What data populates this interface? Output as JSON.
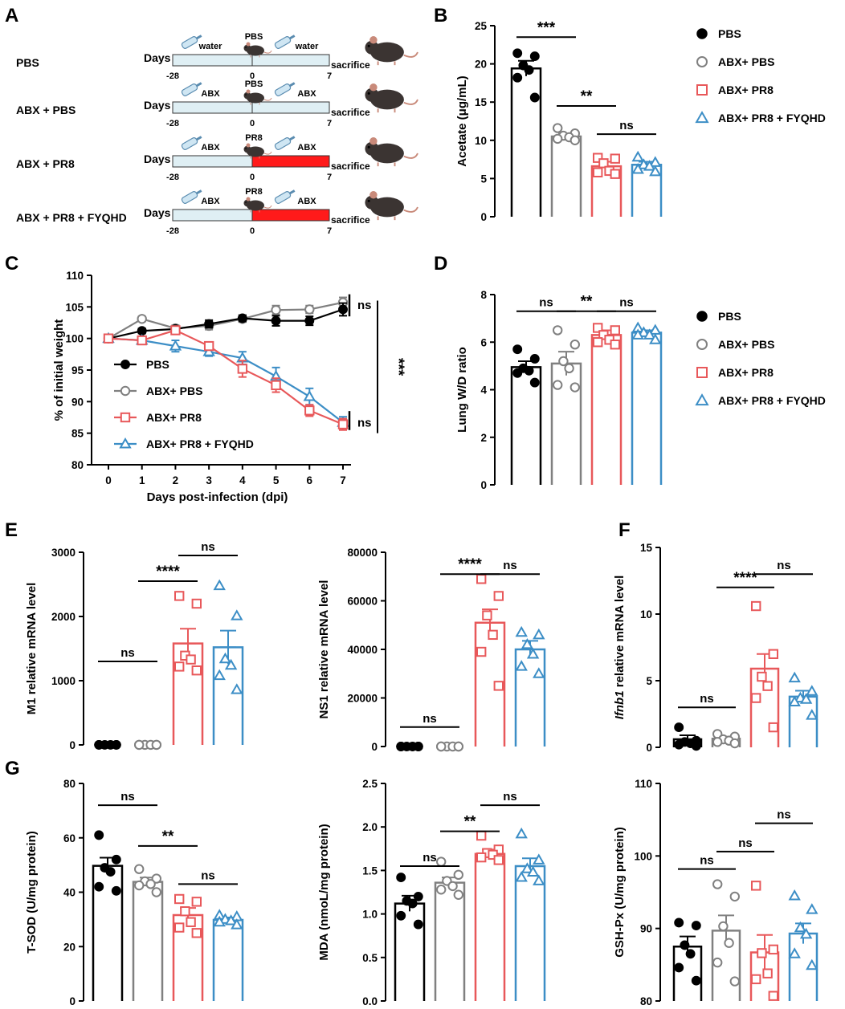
{
  "colors": {
    "pbs": "#000000",
    "abx_pbs": "#808080",
    "abx_pr8": "#e8585a",
    "abx_pr8_fyqhd": "#3c8ec6",
    "red_bar": "#ff1a1a",
    "timeline_fill": "#dfeff4"
  },
  "panel_labels": [
    "A",
    "B",
    "C",
    "D",
    "E",
    "F",
    "G"
  ],
  "legend": [
    "PBS",
    "ABX+ PBS",
    "ABX+ PR8",
    "ABX+ PR8 + FYQHD"
  ],
  "panelA": {
    "rows": [
      {
        "label": "PBS",
        "pre": "water",
        "mid": "PBS",
        "post": "water",
        "infected": false
      },
      {
        "label": "ABX + PBS",
        "pre": "ABX",
        "mid": "PBS",
        "post": "ABX",
        "infected": false
      },
      {
        "label": "ABX + PR8",
        "pre": "ABX",
        "mid": "PR8",
        "post": "ABX",
        "infected": true
      },
      {
        "label": "ABX + PR8 + FYQHD",
        "pre": "ABX",
        "mid": "PR8",
        "post": "ABX",
        "infected": true
      }
    ],
    "days_label": "Days",
    "end_label": "sacrifice",
    "ticks": [
      "-28",
      "0",
      "7"
    ]
  },
  "chart_data": [
    {
      "id": "B",
      "type": "bar",
      "title": "",
      "ylabel": "Acetate (μg/mL)",
      "ylim": [
        0,
        25
      ],
      "yticks": [
        0,
        5,
        10,
        15,
        20,
        25
      ],
      "categories": [
        "PBS",
        "ABX+ PBS",
        "ABX+ PR8",
        "ABX+ PR8 + FYQHD"
      ],
      "values": [
        19.4,
        10.5,
        6.6,
        6.8
      ],
      "sem": [
        1.0,
        0.4,
        0.6,
        0.4
      ],
      "points": [
        [
          21.4,
          21.0,
          19.8,
          19.2,
          18.2,
          15.6
        ],
        [
          11.6,
          10.9,
          10.6,
          10.4,
          10.2,
          10.0
        ],
        [
          7.7,
          7.6,
          7.0,
          6.0,
          5.8,
          5.6
        ],
        [
          7.8,
          7.1,
          6.8,
          6.6,
          6.2,
          5.9
        ]
      ],
      "sig": [
        {
          "a": 0,
          "b": 1,
          "text": "***",
          "y": 23.5
        },
        {
          "a": 1,
          "b": 2,
          "text": "**",
          "y": 14.5
        },
        {
          "a": 2,
          "b": 3,
          "text": "ns",
          "y": 10.8
        }
      ]
    },
    {
      "id": "C",
      "type": "line",
      "xlabel": "Days post-infection (dpi)",
      "ylabel": "% of initial weight",
      "ylim": [
        80,
        110
      ],
      "x": [
        0,
        1,
        2,
        3,
        4,
        5,
        6,
        7
      ],
      "xticks": [
        0,
        1,
        2,
        3,
        4,
        5,
        6,
        7
      ],
      "yticks": [
        80,
        85,
        90,
        95,
        100,
        105,
        110
      ],
      "series": [
        {
          "name": "PBS",
          "values": [
            100,
            101.2,
            101.5,
            102.3,
            103.2,
            102.8,
            102.8,
            104.6
          ],
          "err": [
            0.3,
            0.4,
            0.4,
            0.6,
            0.5,
            0.8,
            0.7,
            1.0
          ]
        },
        {
          "name": "ABX+ PBS",
          "values": [
            100,
            103.1,
            101.6,
            102.0,
            103.1,
            104.5,
            104.6,
            105.7
          ],
          "err": [
            0.3,
            0.4,
            0.5,
            0.6,
            0.5,
            0.7,
            0.6,
            0.8
          ]
        },
        {
          "name": "ABX+ PR8",
          "values": [
            100,
            99.7,
            101.3,
            98.8,
            95.2,
            92.6,
            88.6,
            86.4
          ],
          "err": [
            0.3,
            0.4,
            0.5,
            0.6,
            1.3,
            1.1,
            0.9,
            0.9
          ]
        },
        {
          "name": "ABX+ PR8 + FYQHD",
          "values": [
            100,
            99.7,
            98.8,
            97.9,
            96.9,
            94.0,
            90.8,
            86.7
          ],
          "err": [
            0.3,
            0.5,
            0.9,
            0.7,
            1.0,
            1.4,
            1.3,
            0.9
          ]
        }
      ],
      "sig": [
        {
          "text": "ns"
        },
        {
          "text": "***"
        },
        {
          "text": "ns"
        }
      ]
    },
    {
      "id": "D",
      "type": "bar",
      "ylabel": "Lung W/D ratio",
      "ylim": [
        0,
        8
      ],
      "yticks": [
        0,
        2,
        4,
        6,
        8
      ],
      "categories": [
        "PBS",
        "ABX+ PBS",
        "ABX+ PR8",
        "ABX+ PR8 + FYQHD"
      ],
      "values": [
        4.95,
        5.1,
        6.3,
        6.4
      ],
      "sem": [
        0.25,
        0.5,
        0.2,
        0.1
      ],
      "points": [
        [
          5.7,
          5.3,
          4.9,
          4.8,
          4.7,
          4.3
        ],
        [
          6.5,
          5.9,
          5.2,
          4.9,
          4.2,
          4.1
        ],
        [
          6.6,
          6.5,
          6.3,
          6.1,
          6.0,
          5.9
        ],
        [
          6.6,
          6.5,
          6.4,
          6.3,
          6.3,
          6.1
        ]
      ],
      "sig": [
        {
          "a": 0,
          "b": 1,
          "text": "ns",
          "y": 7.3
        },
        {
          "a": 1,
          "b": 2,
          "text": "**",
          "y": 7.3
        },
        {
          "a": 2,
          "b": 3,
          "text": "ns",
          "y": 7.3
        }
      ]
    },
    {
      "id": "E1",
      "type": "bar",
      "ylabel": "M1 relative mRNA level",
      "ylim": [
        0,
        3000
      ],
      "yticks": [
        0,
        1000,
        2000,
        3000
      ],
      "categories": [
        "PBS",
        "ABX+ PBS",
        "ABX+ PR8",
        "ABX+ PR8 + FYQHD"
      ],
      "values": [
        1,
        1,
        1580,
        1520
      ],
      "sem": [
        0,
        0,
        230,
        260
      ],
      "points": [
        [
          1,
          1,
          1,
          1,
          1,
          1
        ],
        [
          1,
          1,
          1,
          1,
          1,
          1
        ],
        [
          2320,
          2200,
          1390,
          1330,
          1220,
          1160
        ],
        [
          2480,
          2010,
          1340,
          1240,
          1080,
          860
        ]
      ],
      "sig": [
        {
          "a": 0,
          "b": 1,
          "text": "ns",
          "y": 1300
        },
        {
          "a": 1,
          "b": 2,
          "text": "****",
          "y": 2550
        },
        {
          "a": 2,
          "b": 3,
          "text": "ns",
          "y": 2950
        }
      ]
    },
    {
      "id": "E2",
      "type": "bar",
      "ylabel": "NS1 relative mRNA level",
      "ylim": [
        0,
        80000
      ],
      "yticks": [
        0,
        20000,
        40000,
        60000,
        80000
      ],
      "categories": [
        "PBS",
        "ABX+ PBS",
        "ABX+ PR8",
        "ABX+ PR8 + FYQHD"
      ],
      "values": [
        1,
        1,
        51000,
        40000
      ],
      "sem": [
        0,
        0,
        5500,
        3500
      ],
      "points": [
        [
          1,
          1,
          1,
          1,
          1,
          1
        ],
        [
          1,
          1,
          1,
          1,
          1,
          1
        ],
        [
          69000,
          62000,
          54000,
          46000,
          39000,
          25000
        ],
        [
          47000,
          46000,
          42000,
          38000,
          33000,
          30000
        ]
      ],
      "sig": [
        {
          "a": 0,
          "b": 1,
          "text": "ns",
          "y": 8000
        },
        {
          "a": 1,
          "b": 2,
          "text": "****",
          "y": 71000
        },
        {
          "a": 2,
          "b": 3,
          "text": "ns",
          "y": 71000
        }
      ]
    },
    {
      "id": "F",
      "type": "bar",
      "ylabel": "Ifnb1 relative mRNA level",
      "ylim": [
        0,
        15
      ],
      "yticks": [
        0,
        5,
        10,
        15
      ],
      "categories": [
        "PBS",
        "ABX+ PBS",
        "ABX+ PR8",
        "ABX+ PR8 + FYQHD"
      ],
      "values": [
        0.6,
        0.65,
        5.9,
        3.8
      ],
      "sem": [
        0.3,
        0.15,
        1.1,
        0.45
      ],
      "points": [
        [
          1.5,
          0.5,
          0.4,
          0.3,
          0.2,
          0.1
        ],
        [
          1.0,
          0.8,
          0.6,
          0.5,
          0.4,
          0.3
        ],
        [
          10.6,
          7.0,
          5.3,
          4.6,
          3.7,
          1.5
        ],
        [
          5.2,
          4.2,
          3.7,
          3.6,
          3.4,
          2.4
        ]
      ],
      "sig": [
        {
          "a": 0,
          "b": 1,
          "text": "ns",
          "y": 3.0
        },
        {
          "a": 1,
          "b": 2,
          "text": "****",
          "y": 12.0
        },
        {
          "a": 2,
          "b": 3,
          "text": "ns",
          "y": 13.0
        }
      ]
    },
    {
      "id": "G1",
      "type": "bar",
      "ylabel": "T-SOD (U/mg protein)",
      "ylim": [
        0,
        80
      ],
      "yticks": [
        0,
        20,
        40,
        60,
        80
      ],
      "categories": [
        "PBS",
        "ABX+ PBS",
        "ABX+ PR8",
        "ABX+ PR8 + FYQHD"
      ],
      "values": [
        49.7,
        43.8,
        31.6,
        29.8
      ],
      "sem": [
        3.0,
        1.6,
        2.6,
        0.9
      ],
      "points": [
        [
          61,
          52,
          49,
          47.5,
          42,
          40.5
        ],
        [
          48.5,
          45,
          44,
          43,
          42.5,
          40
        ],
        [
          37.5,
          36.5,
          33,
          29,
          27,
          25
        ],
        [
          31.5,
          31,
          30,
          29.5,
          29,
          28
        ]
      ],
      "sig": [
        {
          "a": 0,
          "b": 1,
          "text": "ns",
          "y": 72
        },
        {
          "a": 1,
          "b": 2,
          "text": "**",
          "y": 57
        },
        {
          "a": 2,
          "b": 3,
          "text": "ns",
          "y": 43
        }
      ]
    },
    {
      "id": "G2",
      "type": "bar",
      "ylabel": "MDA (nmoL/mg protein)",
      "ylim": [
        0,
        2.5
      ],
      "yticks": [
        0.0,
        0.5,
        1.0,
        1.5,
        2.0
      ],
      "ytick_labels": [
        "0.0",
        "0.5",
        "1.0",
        "1.5",
        "2.0",
        "2.5"
      ],
      "categories": [
        "PBS",
        "ABX+ PBS",
        "ABX+ PR8",
        "ABX+ PR8 + FYQHD"
      ],
      "values": [
        1.12,
        1.36,
        1.69,
        1.55
      ],
      "sem": [
        0.09,
        0.06,
        0.05,
        0.09
      ],
      "points": [
        [
          1.42,
          1.2,
          1.15,
          1.12,
          0.98,
          0.88
        ],
        [
          1.6,
          1.45,
          1.38,
          1.32,
          1.28,
          1.22
        ],
        [
          1.9,
          1.74,
          1.7,
          1.68,
          1.65,
          1.62
        ],
        [
          1.92,
          1.62,
          1.52,
          1.48,
          1.42,
          1.38
        ]
      ],
      "sig": [
        {
          "a": 0,
          "b": 1,
          "text": "ns",
          "y": 1.55
        },
        {
          "a": 1,
          "b": 2,
          "text": "**",
          "y": 1.95
        },
        {
          "a": 2,
          "b": 3,
          "text": "ns",
          "y": 2.25
        }
      ]
    },
    {
      "id": "G3",
      "type": "bar",
      "ylabel": "GSH-Px (U/mg protein)",
      "ylim": [
        80,
        110
      ],
      "yticks": [
        80,
        90,
        100,
        110
      ],
      "categories": [
        "PBS",
        "ABX+ PBS",
        "ABX+ PR8",
        "ABX+ PR8 + FYQHD"
      ],
      "values": [
        87.5,
        89.7,
        86.7,
        89.3
      ],
      "sem": [
        1.4,
        2.1,
        2.4,
        1.4
      ],
      "points": [
        [
          90.8,
          90.4,
          87.7,
          86.5,
          84.6,
          82.8
        ],
        [
          96.1,
          94.4,
          90.3,
          88.0,
          85.3,
          82.7
        ],
        [
          95.9,
          87.1,
          86.6,
          83.8,
          83.0,
          80.7
        ],
        [
          94.5,
          92.6,
          90.1,
          89.2,
          86.5,
          84.9
        ]
      ],
      "sig": [
        {
          "a": 0,
          "b": 1,
          "text": "ns",
          "y": 98.2
        },
        {
          "a": 1,
          "b": 2,
          "text": "ns",
          "y": 100.6
        },
        {
          "a": 2,
          "b": 3,
          "text": "ns",
          "y": 104.5
        }
      ]
    }
  ]
}
